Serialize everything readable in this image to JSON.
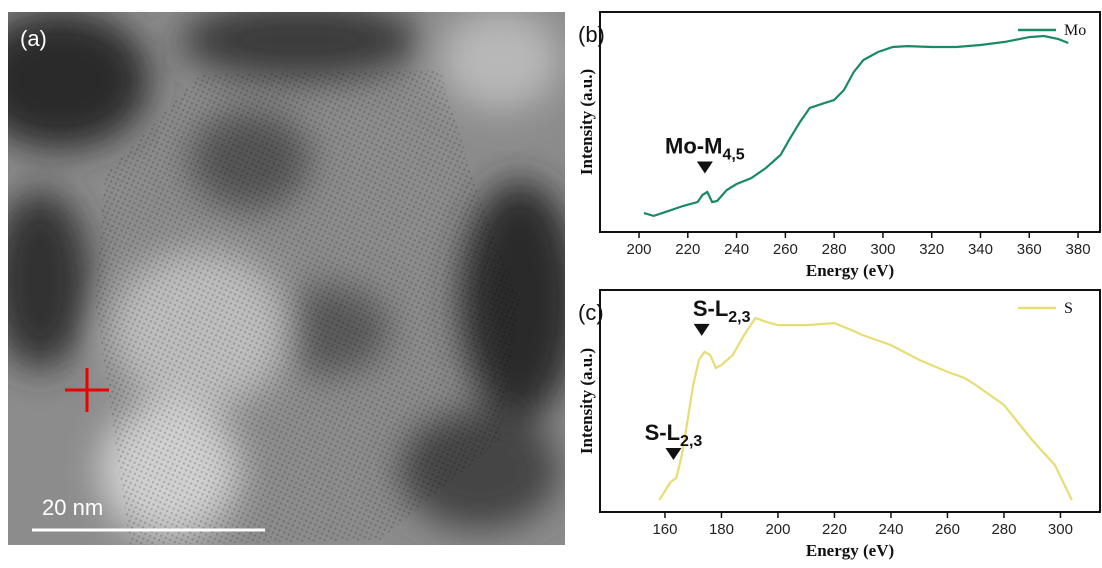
{
  "image": {
    "label": "(a)",
    "scale_bar": "20 nm"
  },
  "chart_data": [
    {
      "type": "line",
      "panel_label": "(b)",
      "x_label": "Energy (eV)",
      "y_label": "Intensity (a.u.)",
      "xlim": [
        184,
        389
      ],
      "ylim": [
        0,
        1
      ],
      "xticks": [
        200,
        220,
        240,
        260,
        280,
        300,
        320,
        340,
        360,
        380
      ],
      "legend": "upper right",
      "series": [
        {
          "name": "Mo",
          "color": "#1a8a64",
          "x": [
            202,
            206,
            212,
            218,
            224,
            226,
            228,
            230,
            232,
            236,
            240,
            246,
            252,
            258,
            262,
            266,
            270,
            276,
            280,
            284,
            288,
            292,
            298,
            304,
            310,
            320,
            330,
            340,
            350,
            360,
            366,
            372,
            376
          ],
          "values": [
            0.086,
            0.073,
            0.095,
            0.118,
            0.136,
            0.168,
            0.182,
            0.136,
            0.141,
            0.191,
            0.218,
            0.245,
            0.291,
            0.35,
            0.427,
            0.5,
            0.564,
            0.586,
            0.6,
            0.645,
            0.727,
            0.782,
            0.818,
            0.841,
            0.845,
            0.841,
            0.841,
            0.85,
            0.864,
            0.886,
            0.891,
            0.877,
            0.859
          ]
        }
      ],
      "annotations": [
        {
          "text": "Mo-M",
          "subscript": "4,5",
          "x": 227
        }
      ]
    },
    {
      "type": "line",
      "panel_label": "(c)",
      "x_label": "Energy (eV)",
      "y_label": "Intensity (a.u.)",
      "xlim": [
        137,
        314
      ],
      "ylim": [
        0,
        1
      ],
      "xticks": [
        160,
        180,
        200,
        220,
        240,
        260,
        280,
        300
      ],
      "legend": "upper right",
      "series": [
        {
          "name": "S",
          "color": "#e6dd74",
          "x": [
            158,
            162,
            164,
            166,
            168,
            170,
            172,
            174,
            176,
            178,
            180,
            184,
            188,
            192,
            196,
            200,
            210,
            220,
            226,
            230,
            240,
            250,
            260,
            266,
            270,
            280,
            290,
            298,
            304
          ],
          "values": [
            0.054,
            0.135,
            0.153,
            0.257,
            0.414,
            0.572,
            0.685,
            0.721,
            0.707,
            0.649,
            0.662,
            0.707,
            0.797,
            0.874,
            0.856,
            0.842,
            0.842,
            0.851,
            0.82,
            0.797,
            0.752,
            0.685,
            0.631,
            0.604,
            0.572,
            0.482,
            0.324,
            0.212,
            0.054
          ]
        }
      ],
      "annotations": [
        {
          "text": "S-L",
          "subscript": "2,3",
          "x": 173
        },
        {
          "text": "S-L",
          "subscript": "2,3",
          "x": 163
        }
      ]
    }
  ]
}
